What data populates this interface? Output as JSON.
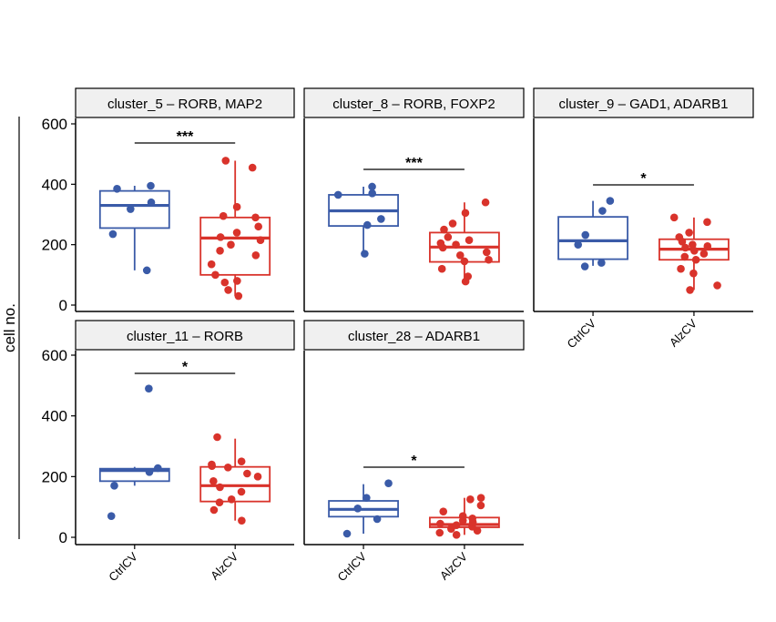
{
  "figure": {
    "ylabel": "cell no.",
    "colors": {
      "CtrlCV": "#3a5ba8",
      "AlzCV": "#d9332b",
      "strip_fill": "#f0f0f0",
      "axis": "#000000"
    }
  },
  "chart_data": [
    {
      "type": "box",
      "title": "cluster_5 – RORB, MAP2",
      "categories": [
        "CtrlCV",
        "AlzCV"
      ],
      "ylabel": "cell no.",
      "ylim": [
        0,
        600
      ],
      "yticks": [
        0,
        200,
        400,
        600
      ],
      "show_y_ticks": true,
      "show_x_ticks": false,
      "boxes": [
        {
          "group": "CtrlCV",
          "whisker_low": 115,
          "q1": 255,
          "median": 330,
          "q3": 378,
          "whisker_high": 395
        },
        {
          "group": "AlzCV",
          "whisker_low": 30,
          "q1": 100,
          "median": 222,
          "q3": 290,
          "whisker_high": 478
        }
      ],
      "points": [
        {
          "group": "CtrlCV",
          "values": [
            115,
            235,
            318,
            340,
            385,
            395
          ]
        },
        {
          "group": "AlzCV",
          "values": [
            30,
            50,
            75,
            80,
            100,
            135,
            165,
            180,
            200,
            215,
            225,
            240,
            260,
            290,
            295,
            325,
            455,
            478
          ]
        }
      ],
      "significance": "***"
    },
    {
      "type": "box",
      "title": "cluster_8 – RORB, FOXP2",
      "categories": [
        "CtrlCV",
        "AlzCV"
      ],
      "ylim": [
        0,
        600
      ],
      "yticks": [
        0,
        200,
        400,
        600
      ],
      "show_y_ticks": false,
      "show_x_ticks": false,
      "boxes": [
        {
          "group": "CtrlCV",
          "whisker_low": 170,
          "q1": 262,
          "median": 312,
          "q3": 365,
          "whisker_high": 392
        },
        {
          "group": "AlzCV",
          "whisker_low": 78,
          "q1": 143,
          "median": 192,
          "q3": 240,
          "whisker_high": 340
        }
      ],
      "points": [
        {
          "group": "CtrlCV",
          "values": [
            170,
            265,
            285,
            365,
            370,
            392
          ]
        },
        {
          "group": "AlzCV",
          "values": [
            78,
            95,
            120,
            145,
            150,
            165,
            175,
            190,
            200,
            205,
            215,
            225,
            250,
            270,
            305,
            340
          ]
        }
      ],
      "significance": "***"
    },
    {
      "type": "box",
      "title": "cluster_9 – GAD1, ADARB1",
      "categories": [
        "CtrlCV",
        "AlzCV"
      ],
      "ylim": [
        0,
        600
      ],
      "yticks": [
        0,
        200,
        400,
        600
      ],
      "show_y_ticks": false,
      "show_x_ticks": true,
      "boxes": [
        {
          "group": "CtrlCV",
          "whisker_low": 130,
          "q1": 152,
          "median": 213,
          "q3": 292,
          "whisker_high": 345
        },
        {
          "group": "AlzCV",
          "whisker_low": 50,
          "q1": 150,
          "median": 185,
          "q3": 218,
          "whisker_high": 290
        }
      ],
      "points": [
        {
          "group": "CtrlCV",
          "values": [
            128,
            140,
            200,
            232,
            312,
            345
          ]
        },
        {
          "group": "AlzCV",
          "values": [
            50,
            65,
            105,
            120,
            150,
            160,
            170,
            180,
            190,
            195,
            200,
            210,
            225,
            240,
            275,
            290
          ]
        }
      ],
      "significance": "*"
    },
    {
      "type": "box",
      "title": "cluster_11 – RORB",
      "categories": [
        "CtrlCV",
        "AlzCV"
      ],
      "ylim": [
        0,
        600
      ],
      "yticks": [
        0,
        200,
        400,
        600
      ],
      "show_y_ticks": true,
      "show_x_ticks": true,
      "boxes": [
        {
          "group": "CtrlCV",
          "whisker_low": 170,
          "q1": 185,
          "median": 220,
          "q3": 226,
          "whisker_high": 232
        },
        {
          "group": "AlzCV",
          "whisker_low": 55,
          "q1": 118,
          "median": 170,
          "q3": 232,
          "whisker_high": 325
        }
      ],
      "points": [
        {
          "group": "CtrlCV",
          "values": [
            70,
            170,
            215,
            228,
            490
          ]
        },
        {
          "group": "AlzCV",
          "values": [
            55,
            90,
            115,
            125,
            150,
            165,
            185,
            200,
            210,
            230,
            235,
            240,
            250,
            330
          ]
        }
      ],
      "significance": "*"
    },
    {
      "type": "box",
      "title": "cluster_28 – ADARB1",
      "categories": [
        "CtrlCV",
        "AlzCV"
      ],
      "ylim": [
        0,
        600
      ],
      "yticks": [
        0,
        200,
        400,
        600
      ],
      "show_y_ticks": false,
      "show_x_ticks": true,
      "boxes": [
        {
          "group": "CtrlCV",
          "whisker_low": 12,
          "q1": 68,
          "median": 92,
          "q3": 120,
          "whisker_high": 175
        },
        {
          "group": "AlzCV",
          "whisker_low": 8,
          "q1": 33,
          "median": 42,
          "q3": 65,
          "whisker_high": 130
        }
      ],
      "points": [
        {
          "group": "CtrlCV",
          "values": [
            12,
            60,
            95,
            130,
            178
          ]
        },
        {
          "group": "AlzCV",
          "values": [
            8,
            15,
            22,
            28,
            35,
            40,
            45,
            50,
            55,
            62,
            70,
            85,
            105,
            125,
            130
          ]
        }
      ],
      "significance": "*"
    }
  ]
}
